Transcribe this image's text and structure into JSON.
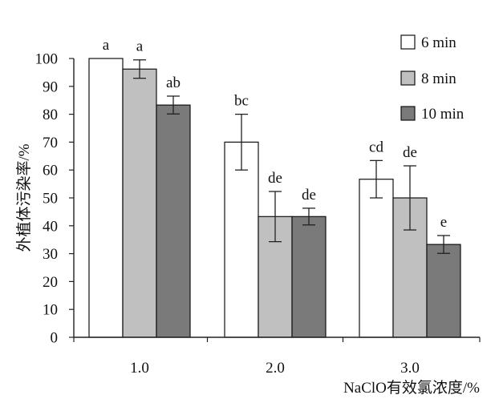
{
  "chart_data": {
    "type": "bar",
    "xlabel": "NaClO有效氯浓度/%",
    "ylabel": "外植体污染率/%",
    "ylim": [
      0,
      100
    ],
    "yticks": [
      0,
      10,
      20,
      30,
      40,
      50,
      60,
      70,
      80,
      90,
      100
    ],
    "categories": [
      "1.0",
      "2.0",
      "3.0"
    ],
    "series": [
      {
        "name": "6 min",
        "color": "#ffffff",
        "values": [
          100,
          70,
          56.7
        ],
        "errors": [
          0,
          10,
          6.7
        ],
        "labels": [
          "a",
          "bc",
          "cd"
        ]
      },
      {
        "name": "8 min",
        "color": "#c0c0c0",
        "values": [
          96.2,
          43.3,
          50
        ],
        "errors": [
          3.3,
          9,
          11.5
        ],
        "labels": [
          "a",
          "de",
          "de"
        ]
      },
      {
        "name": "10 min",
        "color": "#7a7a7a",
        "values": [
          83.3,
          43.3,
          33.3
        ],
        "errors": [
          3.2,
          3,
          3.2
        ],
        "labels": [
          "ab",
          "de",
          "e"
        ]
      }
    ],
    "legend_position": "top-right",
    "grid": false
  }
}
